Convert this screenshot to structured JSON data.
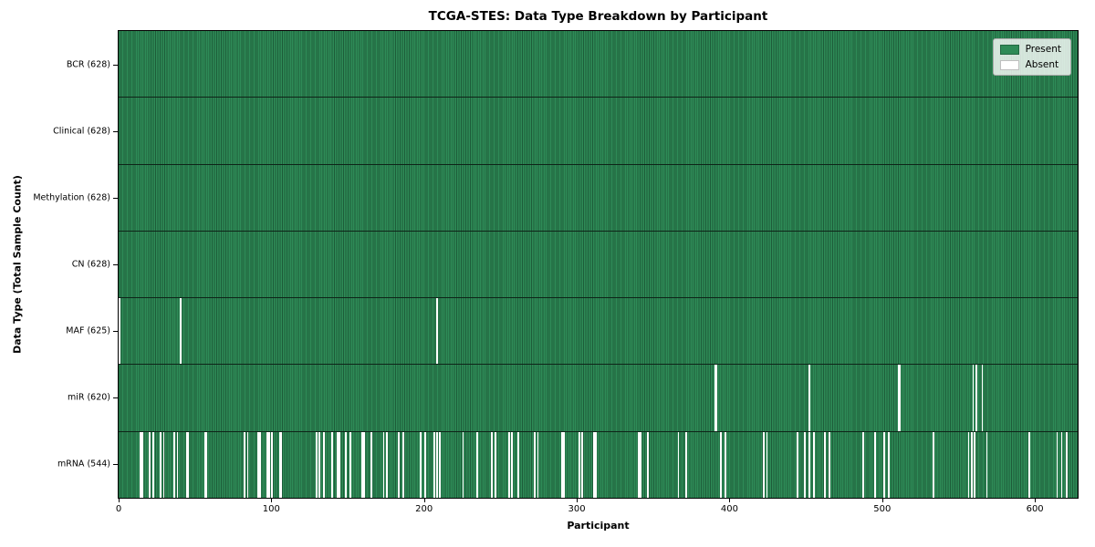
{
  "figure": {
    "title": "TCGA-STES: Data Type Breakdown by Participant",
    "xlabel": "Participant",
    "ylabel": "Data Type (Total Sample Count)"
  },
  "legend": {
    "present_label": "Present",
    "absent_label": "Absent"
  },
  "colors": {
    "present": "#2e8b57",
    "present_edge": "#1d5c39",
    "absent": "#ffffff",
    "row_divider": "#0e2418",
    "spine": "#000000"
  },
  "chart_data": {
    "type": "heatmap",
    "title": "TCGA-STES: Data Type Breakdown by Participant",
    "xlabel": "Participant",
    "ylabel": "Data Type (Total Sample Count)",
    "n_participants": 628,
    "xlim": [
      0,
      628
    ],
    "x_ticks": [
      0,
      100,
      200,
      300,
      400,
      500,
      600
    ],
    "grid": false,
    "legend_entries": [
      "Present",
      "Absent"
    ],
    "legend_position": "upper right",
    "rows": [
      {
        "label": "BCR (628)",
        "name": "BCR",
        "total": 628,
        "absent": []
      },
      {
        "label": "Clinical (628)",
        "name": "Clinical",
        "total": 628,
        "absent": []
      },
      {
        "label": "Methylation (628)",
        "name": "Methylation",
        "total": 628,
        "absent": []
      },
      {
        "label": "CN (628)",
        "name": "CN",
        "total": 628,
        "absent": []
      },
      {
        "label": "MAF (625)",
        "name": "MAF",
        "total": 625,
        "absent": [
          0,
          40,
          208
        ]
      },
      {
        "label": "miR (620)",
        "name": "miR",
        "total": 620,
        "absent": [
          390,
          391,
          452,
          510,
          511,
          559,
          561,
          565
        ]
      },
      {
        "label": "mRNA (544)",
        "name": "mRNA",
        "total": 544,
        "absent": [
          14,
          15,
          20,
          22,
          27,
          29,
          36,
          38,
          44,
          45,
          56,
          57,
          82,
          84,
          91,
          92,
          97,
          98,
          100,
          105,
          106,
          129,
          131,
          134,
          139,
          143,
          144,
          148,
          151,
          159,
          160,
          165,
          173,
          175,
          183,
          186,
          197,
          200,
          206,
          208,
          210,
          225,
          234,
          244,
          246,
          255,
          257,
          261,
          272,
          274,
          290,
          291,
          301,
          303,
          311,
          312,
          340,
          341,
          346,
          366,
          371,
          394,
          397,
          422,
          424,
          444,
          449,
          452,
          455,
          462,
          465,
          487,
          495,
          501,
          504,
          533,
          556,
          558,
          560,
          568,
          596,
          614,
          617,
          620
        ]
      }
    ]
  }
}
